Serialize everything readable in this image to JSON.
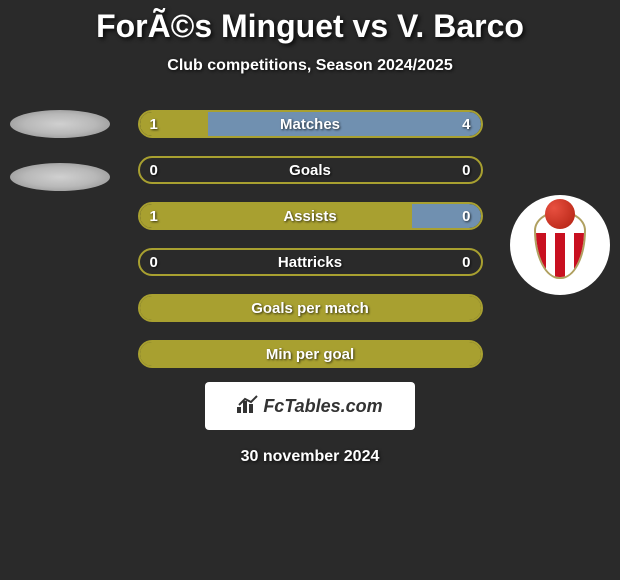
{
  "title": "ForÃ©s Minguet vs V. Barco",
  "subtitle": "Club competitions, Season 2024/2025",
  "date": "30 november 2024",
  "footer_brand": "FcTables.com",
  "colors": {
    "background": "#2a2a2a",
    "bar_fill": "#a8a030",
    "bar_border": "#b8b848",
    "bar_alt_right": "#7090b0",
    "text": "#ffffff"
  },
  "bars": [
    {
      "label": "Matches",
      "left_value": "1",
      "right_value": "4",
      "left_pct": 20,
      "right_pct": 80,
      "left_color": "#a8a030",
      "right_color": "#7090b0",
      "border_color": "#a8a030"
    },
    {
      "label": "Goals",
      "left_value": "0",
      "right_value": "0",
      "left_pct": 0,
      "right_pct": 0,
      "left_color": "#a8a030",
      "right_color": "#a8a030",
      "border_color": "#a8a030"
    },
    {
      "label": "Assists",
      "left_value": "1",
      "right_value": "0",
      "left_pct": 80,
      "right_pct": 20,
      "left_color": "#a8a030",
      "right_color": "#7090b0",
      "border_color": "#a8a030"
    },
    {
      "label": "Hattricks",
      "left_value": "0",
      "right_value": "0",
      "left_pct": 0,
      "right_pct": 0,
      "left_color": "#a8a030",
      "right_color": "#a8a030",
      "border_color": "#a8a030"
    },
    {
      "label": "Goals per match",
      "left_value": "",
      "right_value": "",
      "left_pct": 100,
      "right_pct": 0,
      "left_color": "#a8a030",
      "right_color": "#a8a030",
      "border_color": "#a8a030"
    },
    {
      "label": "Min per goal",
      "left_value": "",
      "right_value": "",
      "left_pct": 100,
      "right_pct": 0,
      "left_color": "#a8a030",
      "right_color": "#a8a030",
      "border_color": "#a8a030"
    }
  ]
}
